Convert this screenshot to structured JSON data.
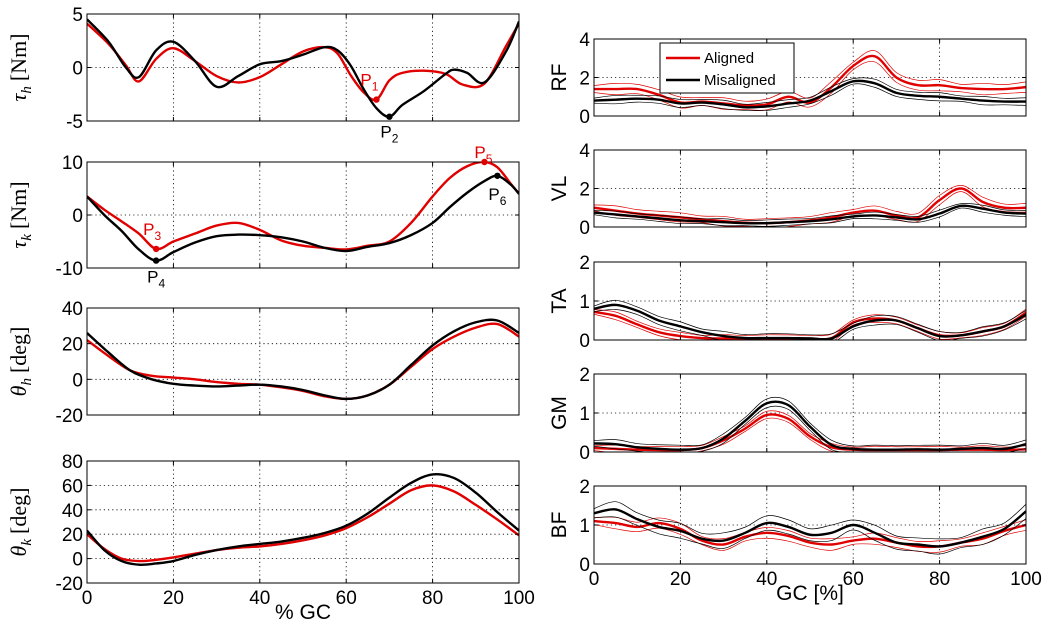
{
  "colors": {
    "aligned": "#e00000",
    "misaligned": "#000000"
  },
  "chart_data": [
    {
      "id": "tau_h",
      "type": "line",
      "ylabel_sym": "τ",
      "ylabel_sub": "h",
      "ylabel_unit": "[Nm]",
      "xlim": [
        0,
        100
      ],
      "ylim": [
        -5,
        5
      ],
      "yticks": [
        -5,
        0,
        5
      ],
      "xticks": [
        0,
        20,
        40,
        60,
        80,
        100
      ],
      "grid": true,
      "series": [
        {
          "color": "aligned",
          "x": [
            0,
            5,
            9,
            12,
            16,
            20,
            25,
            30,
            35,
            40,
            45,
            50,
            55,
            58,
            61,
            64,
            67,
            70,
            73,
            78,
            83,
            87,
            92,
            97,
            100
          ],
          "y": [
            4.1,
            2.2,
            0.2,
            -1.3,
            0.8,
            1.8,
            0.6,
            -0.8,
            -1.4,
            -0.9,
            0.3,
            1.5,
            1.9,
            1.3,
            -0.7,
            -2.3,
            -3.0,
            -1.2,
            -0.5,
            -0.3,
            -0.6,
            -1.6,
            -1.5,
            2.0,
            4.1
          ]
        },
        {
          "color": "misaligned",
          "x": [
            0,
            5,
            9,
            12,
            16,
            20,
            25,
            30,
            35,
            40,
            45,
            50,
            55,
            58,
            61,
            64,
            67,
            70,
            73,
            78,
            83,
            85,
            88,
            92,
            97,
            100
          ],
          "y": [
            4.5,
            2.4,
            0.0,
            -0.9,
            1.6,
            2.4,
            0.6,
            -1.8,
            -0.8,
            0.3,
            0.6,
            1.2,
            1.9,
            1.6,
            0.2,
            -2.0,
            -3.8,
            -4.6,
            -3.5,
            -2.2,
            -0.6,
            -0.2,
            -0.5,
            -1.4,
            1.5,
            4.3
          ]
        }
      ],
      "points": [
        {
          "main": "P",
          "sub": "1",
          "x": 67,
          "y": -3.0,
          "color": "aligned",
          "dx": -7,
          "dy": -14
        },
        {
          "main": "P",
          "sub": "2",
          "x": 70,
          "y": -4.6,
          "color": "misaligned",
          "dx": 0,
          "dy": 21
        }
      ]
    },
    {
      "id": "tau_k",
      "type": "line",
      "ylabel_sym": "τ",
      "ylabel_sub": "k",
      "ylabel_unit": "[Nm]",
      "xlim": [
        0,
        100
      ],
      "ylim": [
        -10,
        10
      ],
      "yticks": [
        -10,
        0,
        10
      ],
      "xticks": [
        0,
        20,
        40,
        60,
        80,
        100
      ],
      "grid": true,
      "series": [
        {
          "color": "aligned",
          "x": [
            0,
            4,
            8,
            12,
            16,
            20,
            25,
            30,
            35,
            40,
            45,
            50,
            55,
            60,
            65,
            70,
            75,
            80,
            84,
            88,
            92,
            95,
            98,
            100
          ],
          "y": [
            3.5,
            1.0,
            -1.2,
            -3.5,
            -6.4,
            -5.0,
            -3.5,
            -2.0,
            -1.5,
            -2.8,
            -4.8,
            -5.8,
            -6.2,
            -6.5,
            -5.8,
            -5.0,
            -1.5,
            3.5,
            7.0,
            9.2,
            10.0,
            9.0,
            6.0,
            4.0
          ]
        },
        {
          "color": "misaligned",
          "x": [
            0,
            4,
            8,
            12,
            16,
            20,
            25,
            30,
            35,
            40,
            45,
            50,
            55,
            60,
            65,
            70,
            75,
            80,
            84,
            88,
            92,
            95,
            98,
            100
          ],
          "y": [
            3.5,
            0.0,
            -3.0,
            -6.5,
            -8.6,
            -7.0,
            -5.2,
            -4.0,
            -3.7,
            -3.8,
            -4.2,
            -5.0,
            -6.2,
            -6.8,
            -6.0,
            -5.3,
            -3.8,
            -1.5,
            1.5,
            4.2,
            6.4,
            7.4,
            5.8,
            4.0
          ]
        }
      ],
      "points": [
        {
          "main": "P",
          "sub": "3",
          "x": 16,
          "y": -6.4,
          "color": "aligned",
          "dx": -4,
          "dy": -14
        },
        {
          "main": "P",
          "sub": "4",
          "x": 16,
          "y": -8.6,
          "color": "misaligned",
          "dx": 0,
          "dy": 22
        },
        {
          "main": "P",
          "sub": "5",
          "x": 92,
          "y": 10.0,
          "color": "aligned",
          "dx": -1,
          "dy": -4
        },
        {
          "main": "P",
          "sub": "6",
          "x": 95,
          "y": 7.4,
          "color": "misaligned",
          "dx": 0,
          "dy": 24
        }
      ]
    },
    {
      "id": "theta_h",
      "type": "line",
      "ylabel_sym": "θ",
      "ylabel_sub": "h",
      "ylabel_unit": "[deg]",
      "xlim": [
        0,
        100
      ],
      "ylim": [
        -20,
        40
      ],
      "yticks": [
        -20,
        0,
        20,
        40
      ],
      "xticks": [
        0,
        20,
        40,
        60,
        80,
        100
      ],
      "grid": true,
      "series": [
        {
          "color": "aligned",
          "x": [
            0,
            5,
            10,
            15,
            20,
            25,
            30,
            35,
            40,
            45,
            50,
            55,
            60,
            65,
            70,
            75,
            80,
            85,
            90,
            95,
            100
          ],
          "y": [
            22,
            13,
            5,
            2,
            1,
            0,
            -1.5,
            -2.5,
            -3,
            -4.5,
            -6.5,
            -9.5,
            -11,
            -9,
            -3,
            7,
            17,
            24,
            29,
            31,
            24
          ]
        },
        {
          "color": "misaligned",
          "x": [
            0,
            5,
            10,
            15,
            20,
            25,
            30,
            35,
            40,
            45,
            50,
            55,
            60,
            65,
            70,
            75,
            80,
            85,
            90,
            95,
            100
          ],
          "y": [
            26,
            15,
            5,
            0,
            -2.5,
            -3.5,
            -4,
            -3.5,
            -3,
            -4,
            -6,
            -9,
            -11,
            -9,
            -3,
            8,
            19,
            27,
            32,
            33,
            26
          ]
        }
      ]
    },
    {
      "id": "theta_k",
      "type": "line",
      "ylabel_sym": "θ",
      "ylabel_sub": "k",
      "ylabel_unit": "[deg]",
      "xlim": [
        0,
        100
      ],
      "ylim": [
        -20,
        80
      ],
      "yticks": [
        -20,
        0,
        20,
        40,
        60,
        80
      ],
      "xticks": [
        0,
        20,
        40,
        60,
        80,
        100
      ],
      "xticklabels": [
        "0",
        "20",
        "40",
        "60",
        "80",
        "100"
      ],
      "xlabel": "% GC",
      "grid": true,
      "series": [
        {
          "color": "aligned",
          "x": [
            0,
            4,
            8,
            12,
            16,
            20,
            25,
            30,
            35,
            40,
            45,
            50,
            55,
            60,
            65,
            70,
            75,
            80,
            85,
            90,
            95,
            100
          ],
          "y": [
            20,
            8,
            0,
            -2,
            -1,
            1,
            4,
            7,
            9,
            10,
            12,
            15,
            19,
            25,
            34,
            45,
            56,
            60,
            55,
            44,
            32,
            19
          ]
        },
        {
          "color": "misaligned",
          "x": [
            0,
            4,
            8,
            12,
            16,
            20,
            25,
            30,
            35,
            40,
            45,
            50,
            55,
            60,
            65,
            70,
            75,
            80,
            85,
            90,
            95,
            100
          ],
          "y": [
            23,
            7,
            -2,
            -5,
            -4,
            -2,
            3,
            7,
            10,
            12,
            14,
            17,
            21,
            27,
            37,
            50,
            62,
            69,
            66,
            54,
            38,
            23
          ]
        }
      ]
    },
    {
      "id": "RF",
      "type": "line",
      "ylabel": "RF",
      "xlim": [
        0,
        100
      ],
      "ylim": [
        0,
        4
      ],
      "yticks": [
        0,
        2,
        4
      ],
      "xticks": [
        0,
        20,
        40,
        60,
        80,
        100
      ],
      "grid": true,
      "legend": {
        "placement": "top-left",
        "entries": [
          {
            "label": "Aligned",
            "color": "aligned"
          },
          {
            "label": "Misaligned",
            "color": "misaligned"
          }
        ]
      },
      "x": [
        0,
        5,
        10,
        15,
        20,
        25,
        30,
        35,
        40,
        45,
        50,
        55,
        60,
        65,
        70,
        75,
        80,
        85,
        90,
        95,
        100
      ],
      "series": [
        {
          "color": "aligned",
          "band": 0.3,
          "y": [
            1.4,
            1.4,
            1.4,
            1.1,
            0.7,
            0.75,
            0.65,
            0.55,
            0.6,
            1.0,
            0.7,
            1.5,
            2.6,
            3.1,
            2.0,
            1.6,
            1.6,
            1.45,
            1.4,
            1.4,
            1.5
          ]
        },
        {
          "color": "misaligned",
          "band": 0.22,
          "y": [
            0.8,
            0.85,
            0.9,
            0.85,
            0.65,
            0.7,
            0.6,
            0.45,
            0.5,
            0.65,
            0.8,
            1.3,
            1.8,
            1.7,
            1.2,
            1.05,
            1.0,
            0.9,
            0.8,
            0.75,
            0.75
          ]
        }
      ]
    },
    {
      "id": "VL",
      "type": "line",
      "ylabel": "VL",
      "xlim": [
        0,
        100
      ],
      "ylim": [
        0,
        4
      ],
      "yticks": [
        0,
        2,
        4
      ],
      "xticks": [
        0,
        20,
        40,
        60,
        80,
        100
      ],
      "grid": true,
      "x": [
        0,
        5,
        10,
        15,
        20,
        25,
        30,
        35,
        40,
        45,
        50,
        55,
        60,
        65,
        70,
        75,
        80,
        85,
        90,
        95,
        100
      ],
      "series": [
        {
          "color": "aligned",
          "band": 0.25,
          "y": [
            1.0,
            0.85,
            0.7,
            0.6,
            0.5,
            0.4,
            0.3,
            0.22,
            0.2,
            0.25,
            0.35,
            0.5,
            0.75,
            0.85,
            0.6,
            0.5,
            1.4,
            2.0,
            1.3,
            1.0,
            1.0
          ]
        },
        {
          "color": "misaligned",
          "band": 0.18,
          "y": [
            0.75,
            0.65,
            0.55,
            0.45,
            0.35,
            0.3,
            0.25,
            0.2,
            0.2,
            0.25,
            0.3,
            0.4,
            0.55,
            0.6,
            0.5,
            0.4,
            0.7,
            1.1,
            0.95,
            0.75,
            0.7
          ]
        }
      ]
    },
    {
      "id": "TA",
      "type": "line",
      "ylabel": "TA",
      "xlim": [
        0,
        100
      ],
      "ylim": [
        0,
        2
      ],
      "yticks": [
        0,
        1,
        2
      ],
      "xticks": [
        0,
        20,
        40,
        60,
        80,
        100
      ],
      "grid": true,
      "x": [
        0,
        5,
        10,
        15,
        20,
        25,
        30,
        35,
        40,
        45,
        50,
        55,
        60,
        65,
        70,
        75,
        80,
        85,
        90,
        95,
        100
      ],
      "series": [
        {
          "color": "aligned",
          "band": 0.1,
          "y": [
            0.72,
            0.62,
            0.4,
            0.2,
            0.1,
            0.05,
            0.04,
            0.04,
            0.04,
            0.04,
            0.04,
            0.05,
            0.45,
            0.55,
            0.5,
            0.3,
            0.12,
            0.12,
            0.22,
            0.35,
            0.7
          ]
        },
        {
          "color": "misaligned",
          "band": 0.12,
          "y": [
            0.8,
            0.9,
            0.75,
            0.5,
            0.35,
            0.2,
            0.1,
            0.05,
            0.05,
            0.05,
            0.04,
            0.04,
            0.35,
            0.5,
            0.5,
            0.3,
            0.1,
            0.12,
            0.22,
            0.35,
            0.65
          ]
        }
      ]
    },
    {
      "id": "GM",
      "type": "line",
      "ylabel": "GM",
      "xlim": [
        0,
        100
      ],
      "ylim": [
        0,
        2
      ],
      "yticks": [
        0,
        1,
        2
      ],
      "xticks": [
        0,
        20,
        40,
        60,
        80,
        100
      ],
      "grid": true,
      "x": [
        0,
        5,
        10,
        15,
        20,
        25,
        30,
        35,
        40,
        45,
        50,
        55,
        60,
        65,
        70,
        75,
        80,
        85,
        90,
        95,
        100
      ],
      "series": [
        {
          "color": "aligned",
          "band": 0.1,
          "y": [
            0.1,
            0.08,
            0.06,
            0.05,
            0.05,
            0.1,
            0.3,
            0.6,
            0.95,
            0.85,
            0.4,
            0.12,
            0.06,
            0.05,
            0.05,
            0.05,
            0.05,
            0.06,
            0.06,
            0.05,
            0.07
          ]
        },
        {
          "color": "misaligned",
          "band": 0.12,
          "y": [
            0.22,
            0.2,
            0.12,
            0.08,
            0.06,
            0.1,
            0.35,
            0.8,
            1.25,
            1.2,
            0.65,
            0.18,
            0.08,
            0.06,
            0.06,
            0.07,
            0.06,
            0.08,
            0.1,
            0.08,
            0.2
          ]
        }
      ]
    },
    {
      "id": "BF",
      "type": "line",
      "ylabel": "BF",
      "xlim": [
        0,
        100
      ],
      "ylim": [
        0,
        2
      ],
      "yticks": [
        0,
        1,
        2
      ],
      "xticks": [
        0,
        20,
        40,
        60,
        80,
        100
      ],
      "xticklabels": [
        "0",
        "20",
        "40",
        "60",
        "80",
        "100"
      ],
      "xlabel": "GC [%]",
      "grid": true,
      "x": [
        0,
        5,
        10,
        15,
        20,
        25,
        30,
        35,
        40,
        45,
        50,
        55,
        60,
        65,
        70,
        75,
        80,
        85,
        90,
        95,
        100
      ],
      "series": [
        {
          "color": "aligned",
          "band": 0.15,
          "y": [
            1.1,
            1.05,
            0.95,
            1.05,
            0.9,
            0.6,
            0.5,
            0.7,
            0.8,
            0.72,
            0.55,
            0.5,
            0.6,
            0.65,
            0.55,
            0.45,
            0.45,
            0.55,
            0.65,
            0.85,
            1.0
          ]
        },
        {
          "color": "misaligned",
          "band": 0.2,
          "y": [
            1.3,
            1.4,
            1.15,
            0.95,
            0.85,
            0.65,
            0.6,
            0.8,
            1.05,
            0.95,
            0.75,
            0.8,
            1.0,
            0.8,
            0.55,
            0.5,
            0.45,
            0.55,
            0.7,
            0.9,
            1.35
          ]
        }
      ]
    }
  ]
}
